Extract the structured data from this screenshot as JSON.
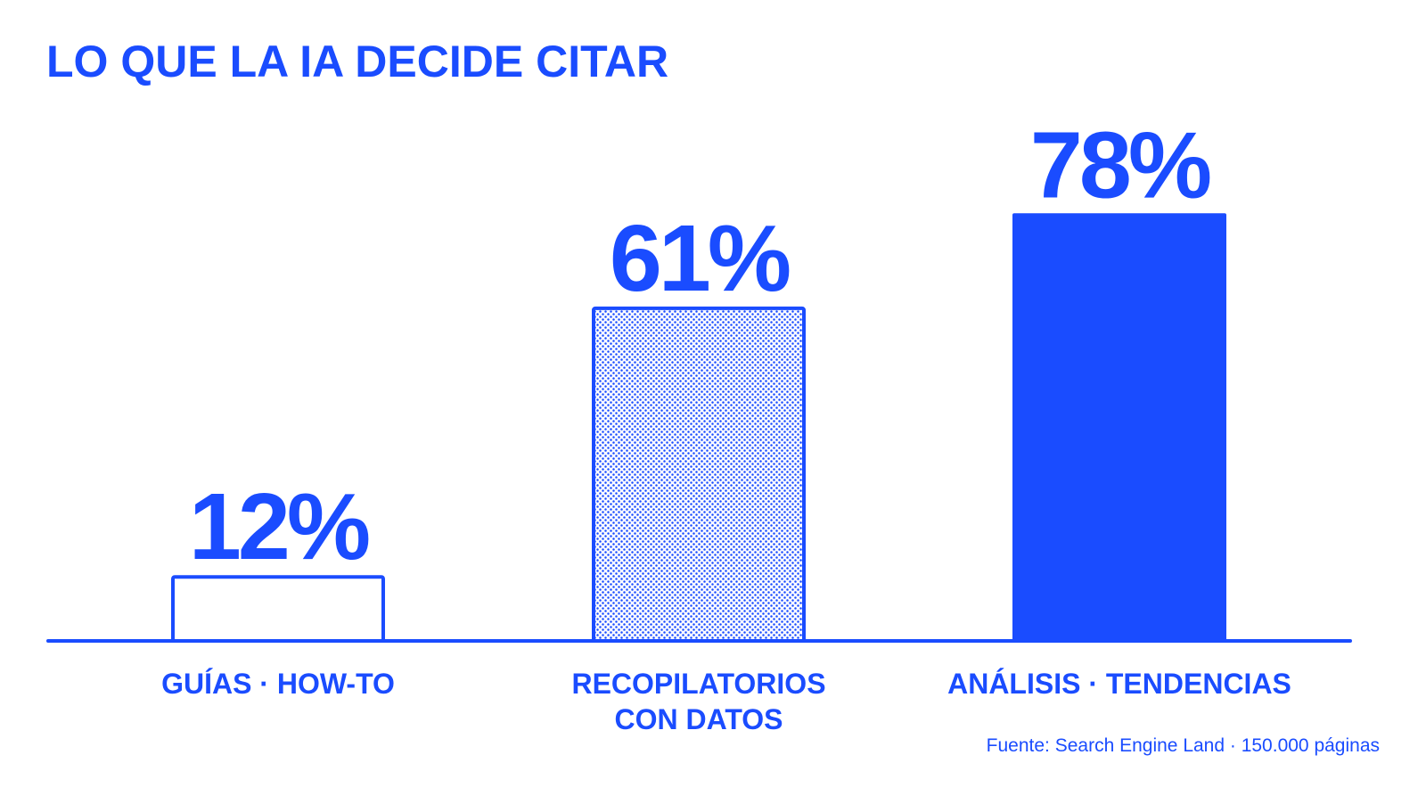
{
  "colors": {
    "accent": "#1a4cff",
    "background": "#ffffff"
  },
  "chart_data": {
    "type": "bar",
    "title": "LO QUE LA IA DECIDE CITAR",
    "xlabel": "",
    "ylabel": "",
    "ylim": [
      0,
      100
    ],
    "grid": false,
    "categories": [
      [
        "GUÍAS · HOW-TO"
      ],
      [
        "RECOPILATORIOS",
        "CON DATOS"
      ],
      [
        "ANÁLISIS · TENDENCIAS"
      ]
    ],
    "values": [
      12,
      61,
      78
    ],
    "value_labels": [
      "12%",
      "61%",
      "78%"
    ],
    "bar_styles": [
      "outline",
      "dotted",
      "solid"
    ],
    "source": "Fuente: Search Engine Land · 150.000 páginas"
  }
}
